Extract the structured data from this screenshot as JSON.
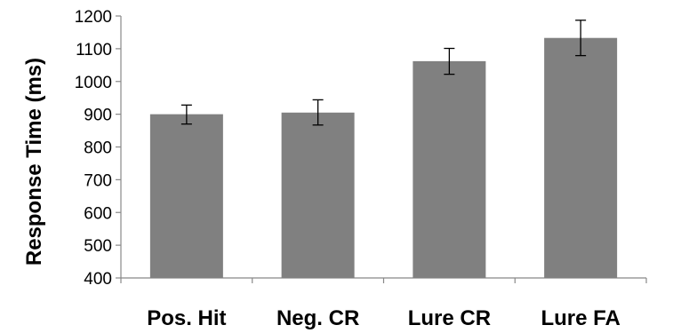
{
  "chart_data": {
    "type": "bar",
    "title": "",
    "xlabel": "",
    "ylabel": "Response Time (ms)",
    "ylim": [
      400,
      1200
    ],
    "yticks": [
      400,
      500,
      600,
      700,
      800,
      900,
      1000,
      1100,
      1200
    ],
    "ytick_labels": [
      "400",
      "500",
      "600",
      "700",
      "800",
      "900",
      "1000",
      "1100",
      "1200"
    ],
    "categories": [
      "Pos. Hit",
      "Neg. CR",
      "Lure CR",
      "Lure FA"
    ],
    "values": [
      900,
      905,
      1062,
      1133
    ],
    "error_low": [
      870,
      867,
      1022,
      1079
    ],
    "error_high": [
      928,
      944,
      1101,
      1187
    ],
    "grid": false,
    "legend": "none",
    "colors": {
      "bar": "#808080",
      "axis": "#888888",
      "error_bar": "#000000",
      "text": "#000000"
    }
  }
}
